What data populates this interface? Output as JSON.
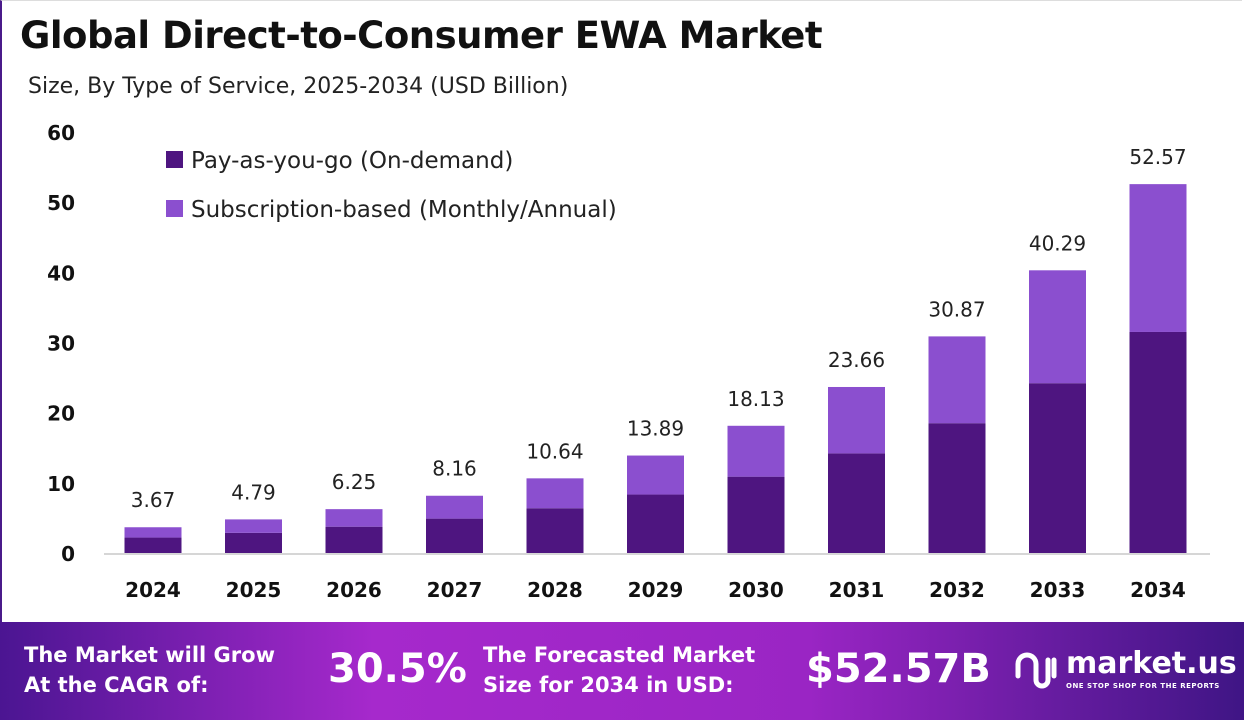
{
  "chart_data": {
    "type": "bar",
    "stacked": true,
    "title": "Global Direct-to-Consumer EWA Market",
    "subtitle": "Size, By Type of Service, 2025-2034 (USD Billion)",
    "categories": [
      "2024",
      "2025",
      "2026",
      "2027",
      "2028",
      "2029",
      "2030",
      "2031",
      "2032",
      "2033",
      "2034"
    ],
    "series": [
      {
        "name": "Pay-as-you-go (On-demand)",
        "color": "#4e1580",
        "values": [
          2.2,
          2.87,
          3.75,
          4.9,
          6.38,
          8.33,
          10.88,
          14.2,
          18.5,
          24.2,
          31.5
        ]
      },
      {
        "name": "Subscription-based (Monthly/Annual)",
        "color": "#8b4fcf",
        "values": [
          1.47,
          1.92,
          2.5,
          3.26,
          4.26,
          5.56,
          7.25,
          9.46,
          12.37,
          16.09,
          21.07
        ]
      }
    ],
    "totals": [
      "3.67",
      "4.79",
      "6.25",
      "8.16",
      "10.64",
      "13.89",
      "18.13",
      "23.66",
      "30.87",
      "40.29",
      "52.57"
    ],
    "ylim": [
      0,
      60
    ],
    "yticks": [
      "0",
      "10",
      "20",
      "30",
      "40",
      "50",
      "60"
    ],
    "grid": false,
    "legend_position": "top-left"
  },
  "footer": {
    "cagr_label_line1": "The Market will Grow",
    "cagr_label_line2": "At the CAGR of:",
    "cagr_value": "30.5%",
    "forecast_label_line1": "The Forecasted Market",
    "forecast_label_line2": "Size for 2034 in USD:",
    "forecast_value": "$52.57B",
    "brand": "market.us",
    "brand_tagline": "ONE STOP SHOP FOR THE REPORTS"
  }
}
